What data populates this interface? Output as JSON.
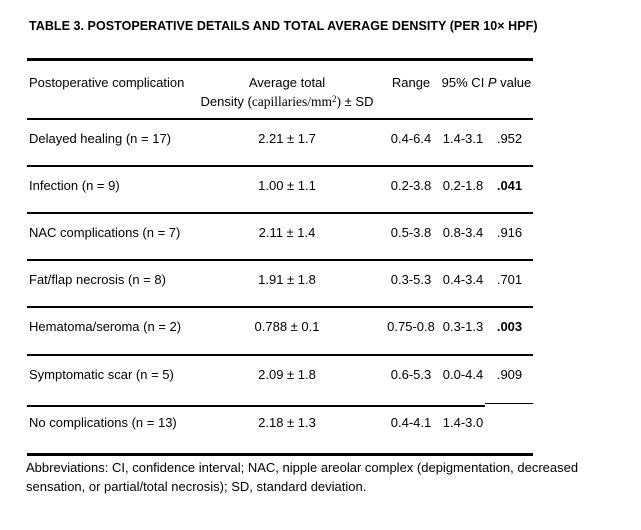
{
  "title": "TABLE 3. POSTOPERATIVE DETAILS AND TOTAL AVERAGE DENSITY (PER 10× HPF)",
  "colors": {
    "text": "#000000",
    "background": "#ffffff",
    "rule": "#000000"
  },
  "table": {
    "header": {
      "complication": "Postoperative complication",
      "avg_line1": "Average total",
      "avg_line2_sans_open": "Density (",
      "avg_line2_serif": "capillaries/mm",
      "avg_line2_sup": "2",
      "avg_line2_serif_close": ")",
      "avg_line2_sans_close": " ± SD",
      "range": "Range",
      "ci": "95% CI",
      "p_italic": "P",
      "p_rest": " value"
    },
    "rows": [
      {
        "complication": "Delayed healing (n = 17)",
        "avg": "2.21 ± 1.7",
        "range": "0.4-6.4",
        "ci": "1.4-3.1",
        "p": ".952",
        "p_significant": false
      },
      {
        "complication": "Infection (n = 9)",
        "avg": "1.00 ± 1.1",
        "range": "0.2-3.8",
        "ci": "0.2-1.8",
        "p": ".041",
        "p_significant": true
      },
      {
        "complication": "NAC complications (n = 7)",
        "avg": "2.11 ± 1.4",
        "range": "0.5-3.8",
        "ci": "0.8-3.4",
        "p": ".916",
        "p_significant": false
      },
      {
        "complication": "Fat/flap necrosis (n = 8)",
        "avg": "1.91 ± 1.8",
        "range": "0.3-5.3",
        "ci": "0.4-3.4",
        "p": ".701",
        "p_significant": false
      },
      {
        "complication": "Hematoma/seroma (n = 2)",
        "avg": "0.788 ± 0.1",
        "range": "0.75-0.8",
        "ci": "0.3-1.3",
        "p": ".003",
        "p_significant": true
      },
      {
        "complication": "Symptomatic scar (n = 5)",
        "avg": "2.09 ± 1.8",
        "range": "0.6-5.3",
        "ci": "0.0-4.4",
        "p": ".909",
        "p_significant": false
      },
      {
        "complication": "No complications (n = 13)",
        "avg": "2.18 ± 1.3",
        "range": "0.4-4.1",
        "ci": "1.4-3.0",
        "p": "",
        "p_significant": false
      }
    ]
  },
  "footnote": {
    "line1": "Abbreviations: CI, confidence interval; NAC, nipple areolar complex (depigmentation, decreased",
    "line2": "sensation, or partial/total necrosis); SD, standard deviation."
  }
}
